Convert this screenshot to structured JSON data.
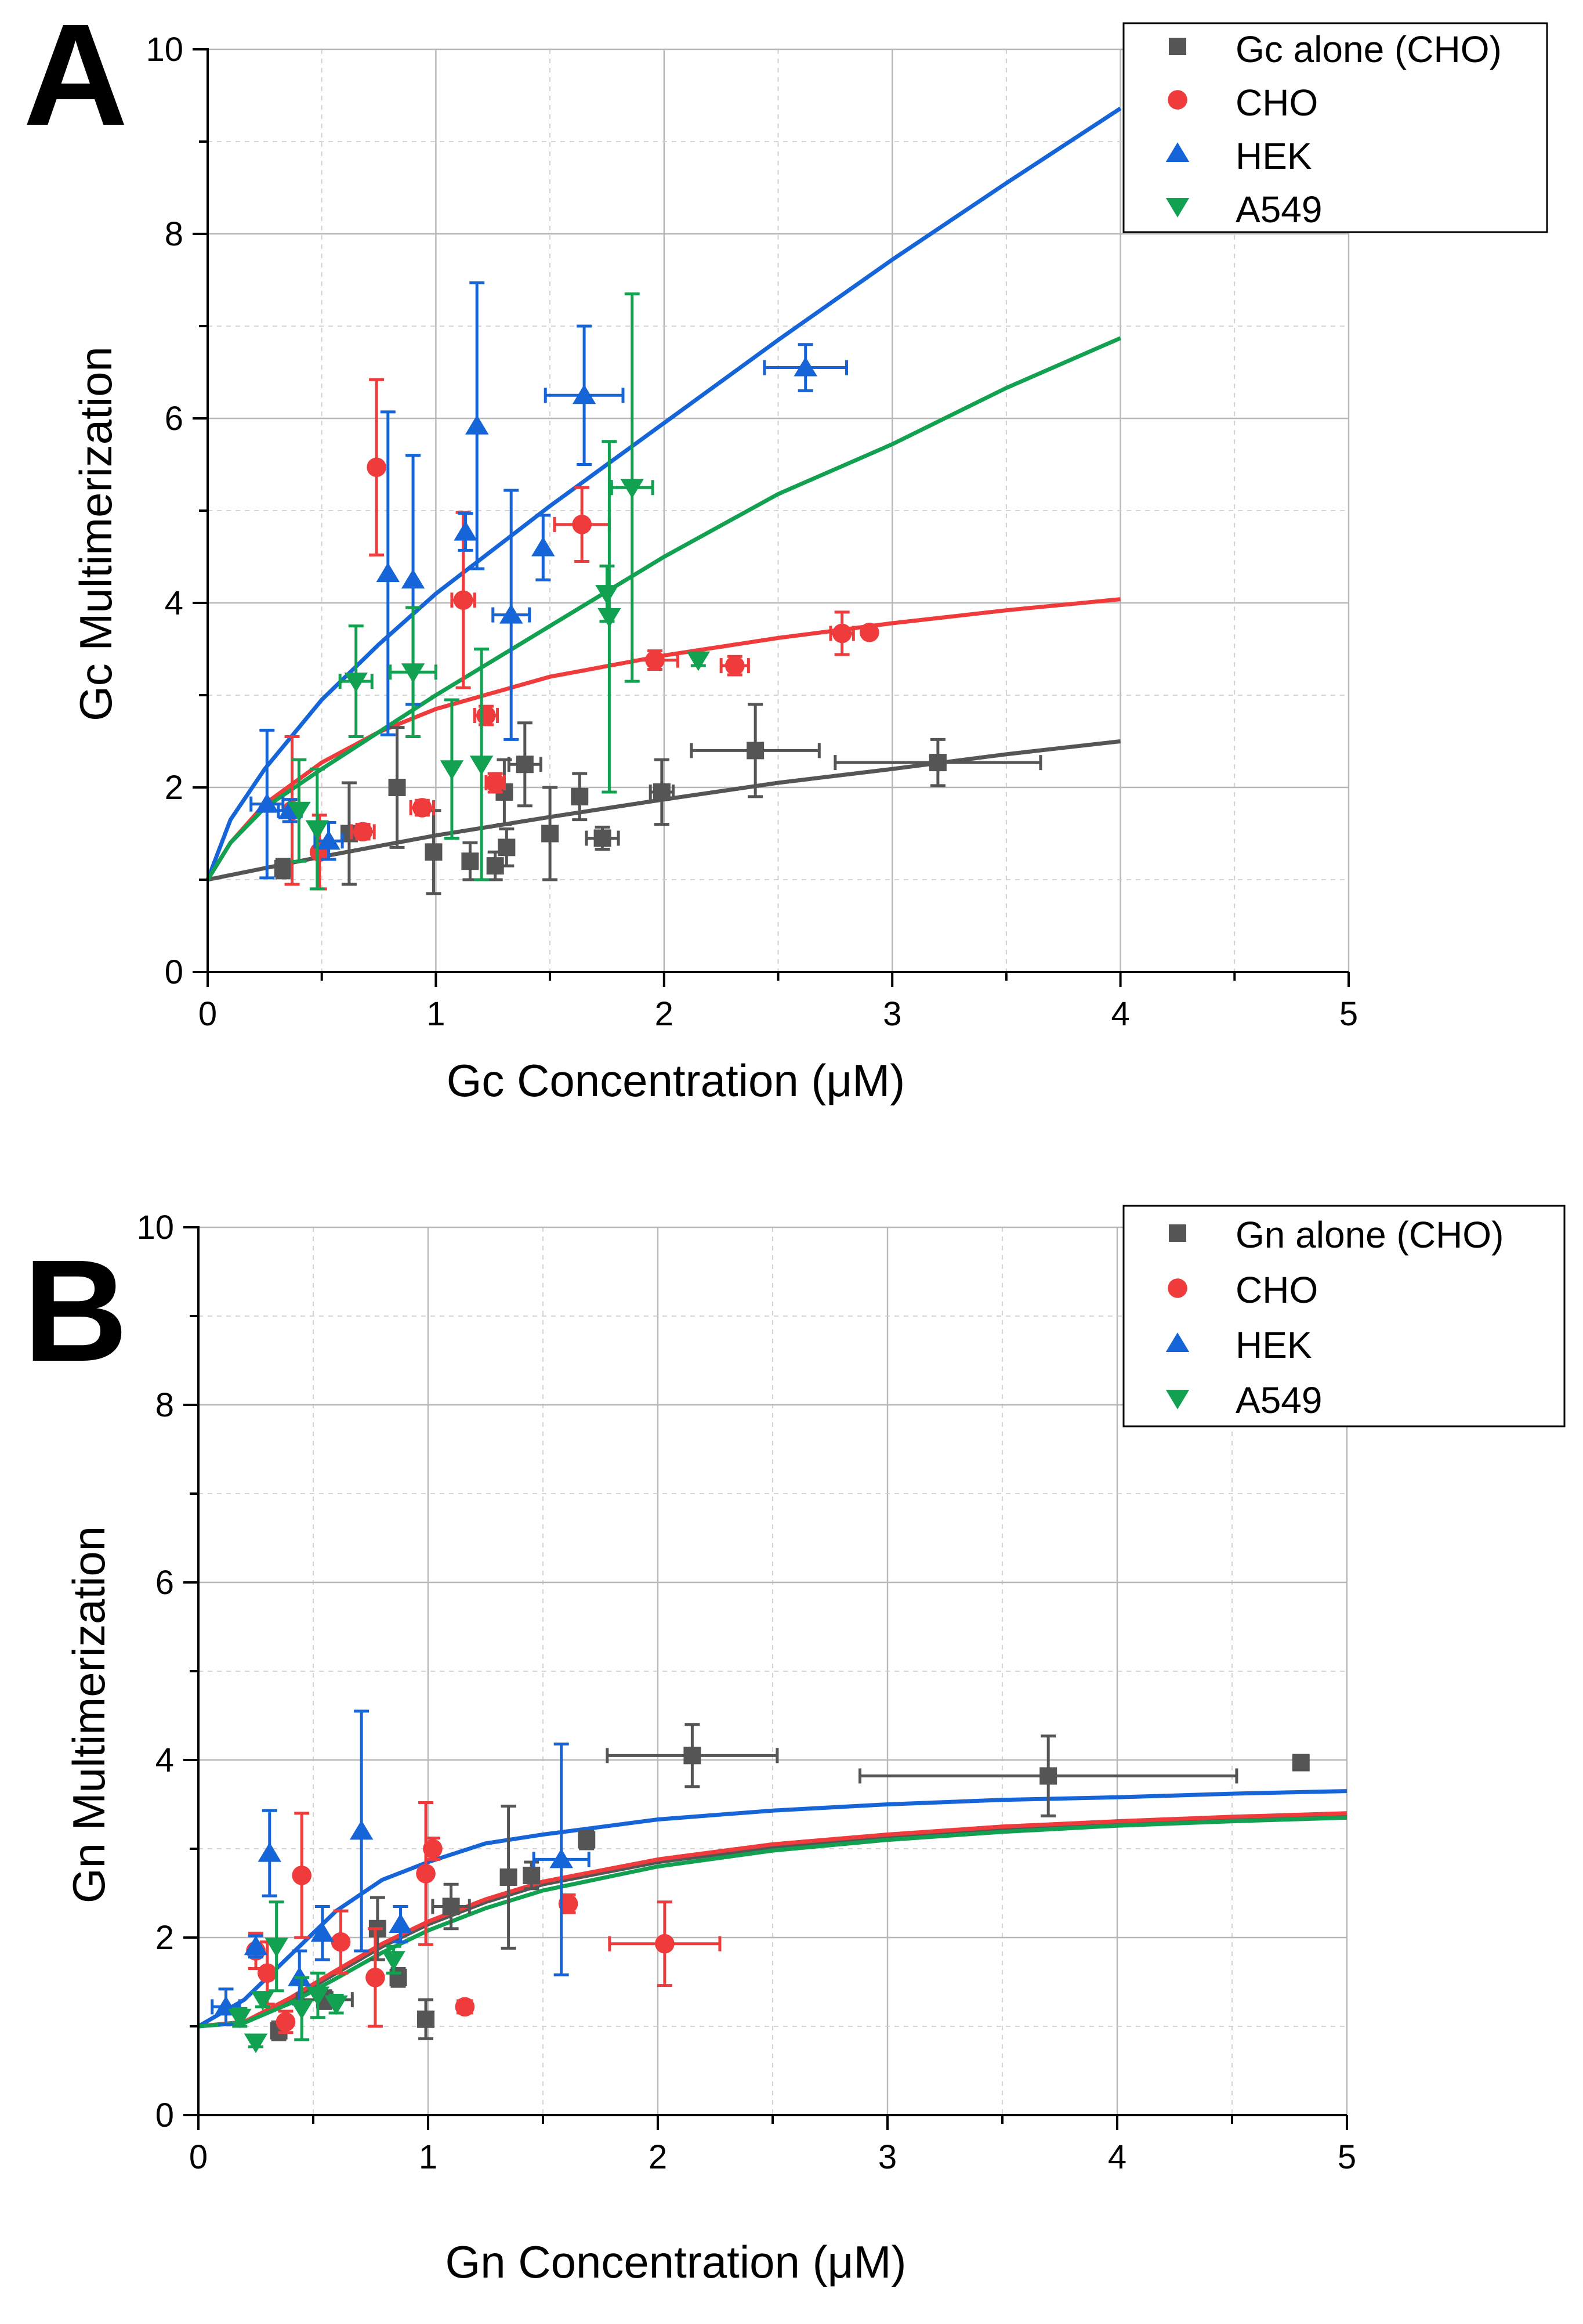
{
  "colors": {
    "gray": "#555555",
    "red": "#ef3b3b",
    "blue": "#1565d8",
    "green": "#12a150"
  },
  "chart_data": [
    {
      "panel": "A",
      "type": "scatter",
      "xlabel": "Gc Concentration (μM)",
      "ylabel": "Gc Multimerization",
      "xlim": [
        0,
        5
      ],
      "ylim": [
        0,
        10
      ],
      "xticks": [
        "0",
        "1",
        "2",
        "3",
        "4",
        "5"
      ],
      "yticks": [
        "0",
        "2",
        "4",
        "6",
        "8",
        "10"
      ],
      "grid": true,
      "legend_position": "top-right",
      "series": [
        {
          "name": "Gc alone (CHO)",
          "marker": "square",
          "color": "#555555",
          "points": [
            {
              "x": 0.33,
              "y": 1.12,
              "yerr": 0.1
            },
            {
              "x": 0.62,
              "y": 1.5,
              "yerr": 0.55
            },
            {
              "x": 0.83,
              "y": 2.0,
              "yerr": 0.65
            },
            {
              "x": 0.99,
              "y": 1.3,
              "yerr": 0.45
            },
            {
              "x": 1.15,
              "y": 1.2,
              "yerr": 0.2
            },
            {
              "x": 1.26,
              "y": 1.15,
              "yerr": 0.15
            },
            {
              "x": 1.31,
              "y": 1.35,
              "yerr": 0.2
            },
            {
              "x": 1.3,
              "y": 1.95,
              "yerr": 0.35
            },
            {
              "x": 1.39,
              "y": 2.25,
              "yerr": 0.45,
              "xerr": 0.07
            },
            {
              "x": 1.5,
              "y": 1.5,
              "yerr": 0.5
            },
            {
              "x": 1.63,
              "y": 1.9,
              "yerr": 0.25
            },
            {
              "x": 1.73,
              "y": 1.45,
              "yerr": 0.12,
              "xerr": 0.07
            },
            {
              "x": 1.99,
              "y": 1.95,
              "yerr": 0.35,
              "xerr": 0.05
            },
            {
              "x": 2.4,
              "y": 2.4,
              "yerr": 0.5,
              "xerr": 0.28
            },
            {
              "x": 3.2,
              "y": 2.27,
              "yerr": 0.25,
              "xerr": 0.45
            }
          ],
          "fit": [
            [
              0,
              1.0
            ],
            [
              0.5,
              1.25
            ],
            [
              1,
              1.48
            ],
            [
              1.5,
              1.68
            ],
            [
              2,
              1.87
            ],
            [
              2.5,
              2.05
            ],
            [
              3,
              2.2
            ],
            [
              3.5,
              2.36
            ],
            [
              4,
              2.5
            ]
          ]
        },
        {
          "name": "CHO",
          "marker": "circle",
          "color": "#ef3b3b",
          "points": [
            {
              "x": 0.37,
              "y": 1.75,
              "yerr": 0.8
            },
            {
              "x": 0.49,
              "y": 1.3,
              "yerr": 0.4
            },
            {
              "x": 0.68,
              "y": 1.52,
              "yerr": 0.08,
              "xerr": 0.05
            },
            {
              "x": 0.74,
              "y": 5.47,
              "yerr": 0.95
            },
            {
              "x": 0.94,
              "y": 1.78,
              "yerr": 0.08,
              "xerr": 0.05
            },
            {
              "x": 1.12,
              "y": 4.03,
              "yerr": 0.95,
              "xerr": 0.05
            },
            {
              "x": 1.22,
              "y": 2.78,
              "yerr": 0.1,
              "xerr": 0.05
            },
            {
              "x": 1.26,
              "y": 2.05,
              "yerr": 0.1,
              "xerr": 0.04
            },
            {
              "x": 1.64,
              "y": 4.85,
              "yerr": 0.4,
              "xerr": 0.12
            },
            {
              "x": 1.96,
              "y": 3.38,
              "yerr": 0.1,
              "xerr": 0.1
            },
            {
              "x": 2.31,
              "y": 3.32,
              "yerr": 0.1,
              "xerr": 0.06
            },
            {
              "x": 2.78,
              "y": 3.67,
              "yerr": 0.23,
              "xerr": 0.05
            },
            {
              "x": 2.9,
              "y": 3.68,
              "yerr": 0.05
            }
          ],
          "fit": [
            [
              0,
              1.0
            ],
            [
              0.1,
              1.4
            ],
            [
              0.25,
              1.82
            ],
            [
              0.5,
              2.27
            ],
            [
              0.75,
              2.6
            ],
            [
              1,
              2.85
            ],
            [
              1.5,
              3.2
            ],
            [
              2,
              3.43
            ],
            [
              2.5,
              3.62
            ],
            [
              3,
              3.78
            ],
            [
              3.5,
              3.92
            ],
            [
              4,
              4.04
            ]
          ]
        },
        {
          "name": "HEK",
          "marker": "triangle-up",
          "color": "#1565d8",
          "points": [
            {
              "x": 0.26,
              "y": 1.82,
              "yerr": 0.8,
              "xerr": 0.07
            },
            {
              "x": 0.36,
              "y": 1.75,
              "yerr": 0.12,
              "xerr": 0.05
            },
            {
              "x": 0.53,
              "y": 1.42,
              "yerr": 0.2,
              "xerr": 0.06
            },
            {
              "x": 0.79,
              "y": 4.32,
              "yerr": 1.75
            },
            {
              "x": 0.9,
              "y": 4.25,
              "yerr": 1.35
            },
            {
              "x": 1.13,
              "y": 4.77,
              "yerr": 0.2
            },
            {
              "x": 1.18,
              "y": 5.92,
              "yerr": 1.55
            },
            {
              "x": 1.33,
              "y": 3.87,
              "yerr": 1.35,
              "xerr": 0.08
            },
            {
              "x": 1.47,
              "y": 4.6,
              "yerr": 0.35
            },
            {
              "x": 1.65,
              "y": 6.25,
              "yerr": 0.75,
              "xerr": 0.17
            },
            {
              "x": 2.62,
              "y": 6.55,
              "yerr": 0.25,
              "xerr": 0.18
            }
          ],
          "fit": [
            [
              0,
              1.0
            ],
            [
              0.1,
              1.65
            ],
            [
              0.25,
              2.2
            ],
            [
              0.5,
              2.95
            ],
            [
              0.75,
              3.55
            ],
            [
              1,
              4.1
            ],
            [
              1.5,
              5.05
            ],
            [
              2,
              5.95
            ],
            [
              2.5,
              6.85
            ],
            [
              3,
              7.72
            ],
            [
              3.5,
              8.55
            ],
            [
              4,
              9.36
            ]
          ]
        },
        {
          "name": "A549",
          "marker": "triangle-down",
          "color": "#12a150",
          "points": [
            {
              "x": 0.4,
              "y": 1.75,
              "yerr": 0.55
            },
            {
              "x": 0.48,
              "y": 1.55,
              "yerr": 0.65
            },
            {
              "x": 0.65,
              "y": 3.15,
              "yerr": 0.6,
              "xerr": 0.07
            },
            {
              "x": 0.9,
              "y": 3.25,
              "yerr": 0.7,
              "xerr": 0.1
            },
            {
              "x": 1.07,
              "y": 2.2,
              "yerr": 0.75
            },
            {
              "x": 1.2,
              "y": 2.25,
              "yerr": 1.25
            },
            {
              "x": 1.75,
              "y": 4.1,
              "yerr": 0.3
            },
            {
              "x": 1.76,
              "y": 3.85,
              "yerr": 1.9
            },
            {
              "x": 1.86,
              "y": 5.25,
              "yerr": 2.1,
              "xerr": 0.09
            },
            {
              "x": 2.15,
              "y": 3.38,
              "yerr": 0.06
            }
          ],
          "fit": [
            [
              0,
              1.0
            ],
            [
              0.1,
              1.4
            ],
            [
              0.25,
              1.78
            ],
            [
              0.5,
              2.2
            ],
            [
              0.75,
              2.6
            ],
            [
              1,
              3.0
            ],
            [
              1.5,
              3.75
            ],
            [
              2,
              4.5
            ],
            [
              2.5,
              5.18
            ],
            [
              3,
              5.72
            ],
            [
              3.5,
              6.33
            ],
            [
              4,
              6.87
            ]
          ]
        }
      ]
    },
    {
      "panel": "B",
      "type": "scatter",
      "xlabel": "Gn Concentration (μM)",
      "ylabel": "Gn Multimerization",
      "xlim": [
        0,
        5
      ],
      "ylim": [
        0,
        10
      ],
      "xticks": [
        "0",
        "1",
        "2",
        "3",
        "4",
        "5"
      ],
      "yticks": [
        "0",
        "2",
        "4",
        "6",
        "8",
        "10"
      ],
      "grid": true,
      "legend_position": "top-right",
      "series": [
        {
          "name": "Gn alone (CHO)",
          "marker": "square",
          "color": "#555555",
          "points": [
            {
              "x": 0.35,
              "y": 0.95,
              "yerr": 0.1
            },
            {
              "x": 0.55,
              "y": 1.3,
              "yerr": 0.1,
              "xerr": 0.12
            },
            {
              "x": 0.78,
              "y": 2.1,
              "yerr": 0.35
            },
            {
              "x": 0.87,
              "y": 1.55,
              "yerr": 0.1
            },
            {
              "x": 0.99,
              "y": 1.08,
              "yerr": 0.22
            },
            {
              "x": 1.1,
              "y": 2.35,
              "yerr": 0.25,
              "xerr": 0.08
            },
            {
              "x": 1.35,
              "y": 2.68,
              "yerr": 0.8
            },
            {
              "x": 1.45,
              "y": 2.7,
              "yerr": 0.15
            },
            {
              "x": 1.69,
              "y": 3.1,
              "yerr": 0.1
            },
            {
              "x": 2.15,
              "y": 4.05,
              "yerr": 0.35,
              "xerr": 0.37
            },
            {
              "x": 3.7,
              "y": 3.82,
              "yerr": 0.45,
              "xerr": 0.82
            },
            {
              "x": 4.8,
              "y": 3.97
            }
          ],
          "fit": [
            [
              0,
              1.0
            ],
            [
              0.2,
              1.05
            ],
            [
              0.4,
              1.3
            ],
            [
              0.6,
              1.6
            ],
            [
              0.8,
              1.9
            ],
            [
              1,
              2.15
            ],
            [
              1.25,
              2.4
            ],
            [
              1.5,
              2.6
            ],
            [
              2,
              2.85
            ],
            [
              2.5,
              3.02
            ],
            [
              3,
              3.13
            ],
            [
              3.5,
              3.22
            ],
            [
              4,
              3.29
            ],
            [
              4.5,
              3.34
            ],
            [
              5,
              3.38
            ]
          ]
        },
        {
          "name": "CHO",
          "marker": "circle",
          "color": "#ef3b3b",
          "points": [
            {
              "x": 0.25,
              "y": 1.85,
              "yerr": 0.2
            },
            {
              "x": 0.3,
              "y": 1.6,
              "yerr": 0.35
            },
            {
              "x": 0.38,
              "y": 1.05,
              "yerr": 0.12
            },
            {
              "x": 0.45,
              "y": 2.7,
              "yerr": 0.7
            },
            {
              "x": 0.62,
              "y": 1.95,
              "yerr": 0.35
            },
            {
              "x": 0.77,
              "y": 1.55,
              "yerr": 0.55
            },
            {
              "x": 0.99,
              "y": 2.72,
              "yerr": 0.8
            },
            {
              "x": 1.02,
              "y": 3.0,
              "yerr": 0.12
            },
            {
              "x": 1.16,
              "y": 1.22,
              "yerr": 0.05,
              "xerr": 0.03
            },
            {
              "x": 1.61,
              "y": 2.38,
              "yerr": 0.1
            },
            {
              "x": 2.03,
              "y": 1.93,
              "yerr": 0.47,
              "xerr": 0.24
            }
          ],
          "fit": [
            [
              0,
              1.0
            ],
            [
              0.2,
              1.05
            ],
            [
              0.4,
              1.32
            ],
            [
              0.6,
              1.63
            ],
            [
              0.8,
              1.93
            ],
            [
              1,
              2.18
            ],
            [
              1.25,
              2.43
            ],
            [
              1.5,
              2.63
            ],
            [
              2,
              2.88
            ],
            [
              2.5,
              3.05
            ],
            [
              3,
              3.16
            ],
            [
              3.5,
              3.25
            ],
            [
              4,
              3.31
            ],
            [
              4.5,
              3.36
            ],
            [
              5,
              3.4
            ]
          ]
        },
        {
          "name": "HEK",
          "marker": "triangle-up",
          "color": "#1565d8",
          "points": [
            {
              "x": 0.12,
              "y": 1.22,
              "yerr": 0.2,
              "xerr": 0.06
            },
            {
              "x": 0.25,
              "y": 1.9,
              "yerr": 0.12
            },
            {
              "x": 0.31,
              "y": 2.95,
              "yerr": 0.48
            },
            {
              "x": 0.44,
              "y": 1.55,
              "yerr": 0.3
            },
            {
              "x": 0.54,
              "y": 2.05,
              "yerr": 0.3
            },
            {
              "x": 0.71,
              "y": 3.2,
              "yerr": 1.35
            },
            {
              "x": 0.88,
              "y": 2.15,
              "yerr": 0.2
            },
            {
              "x": 1.58,
              "y": 2.88,
              "yerr": 1.3,
              "xerr": 0.12
            }
          ],
          "fit": [
            [
              0,
              1.0
            ],
            [
              0.2,
              1.3
            ],
            [
              0.4,
              1.8
            ],
            [
              0.6,
              2.3
            ],
            [
              0.8,
              2.65
            ],
            [
              1,
              2.85
            ],
            [
              1.25,
              3.06
            ],
            [
              1.5,
              3.16
            ],
            [
              2,
              3.33
            ],
            [
              2.5,
              3.43
            ],
            [
              3,
              3.5
            ],
            [
              3.5,
              3.55
            ],
            [
              4,
              3.58
            ],
            [
              4.5,
              3.62
            ],
            [
              5,
              3.65
            ]
          ]
        },
        {
          "name": "A549",
          "marker": "triangle-down",
          "color": "#12a150",
          "points": [
            {
              "x": 0.18,
              "y": 1.1,
              "yerr": 0.1
            },
            {
              "x": 0.25,
              "y": 0.82,
              "yerr": 0.05
            },
            {
              "x": 0.28,
              "y": 1.3,
              "yerr": 0.08
            },
            {
              "x": 0.34,
              "y": 1.9,
              "yerr": 0.5
            },
            {
              "x": 0.45,
              "y": 1.2,
              "yerr": 0.35
            },
            {
              "x": 0.52,
              "y": 1.35,
              "yerr": 0.25
            },
            {
              "x": 0.6,
              "y": 1.25,
              "yerr": 0.1
            },
            {
              "x": 0.85,
              "y": 1.75,
              "yerr": 0.15
            }
          ],
          "fit": [
            [
              0,
              1.0
            ],
            [
              0.2,
              1.04
            ],
            [
              0.4,
              1.26
            ],
            [
              0.6,
              1.54
            ],
            [
              0.8,
              1.83
            ],
            [
              1,
              2.08
            ],
            [
              1.25,
              2.33
            ],
            [
              1.5,
              2.53
            ],
            [
              2,
              2.8
            ],
            [
              2.5,
              2.98
            ],
            [
              3,
              3.1
            ],
            [
              3.5,
              3.19
            ],
            [
              4,
              3.26
            ],
            [
              4.5,
              3.31
            ],
            [
              5,
              3.35
            ]
          ]
        }
      ]
    }
  ]
}
